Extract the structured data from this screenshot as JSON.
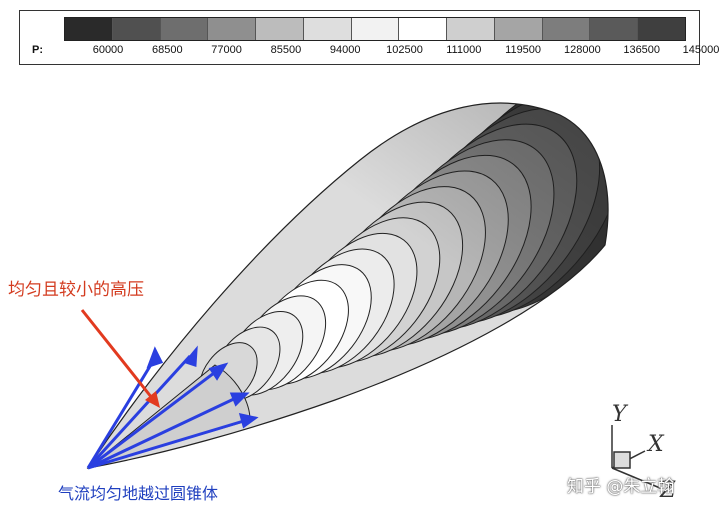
{
  "legend": {
    "variable_label": "P:",
    "levels": [
      "60000",
      "68500",
      "77000",
      "85500",
      "94000",
      "102500",
      "111000",
      "119500",
      "128000",
      "136500",
      "145000"
    ],
    "colors": [
      "#2a2a2a",
      "#505050",
      "#6e6e6e",
      "#8f8f8f",
      "#bcbcbc",
      "#dedede",
      "#f2f2f2",
      "#ffffff",
      "#cfcfcf",
      "#a5a5a5",
      "#7d7d7d",
      "#5a5a5a",
      "#3f3f3f"
    ]
  },
  "annotations": {
    "high_pressure": "均匀且较小的高压",
    "airflow": "气流均匀地越过圆锥体"
  },
  "axes": {
    "y": "Y",
    "x": "X",
    "z": "Z"
  },
  "watermark": "知乎 @朱立翰",
  "colors": {
    "red_arrow": "#e23a1f",
    "blue_arrows": "#2a3fe0"
  }
}
